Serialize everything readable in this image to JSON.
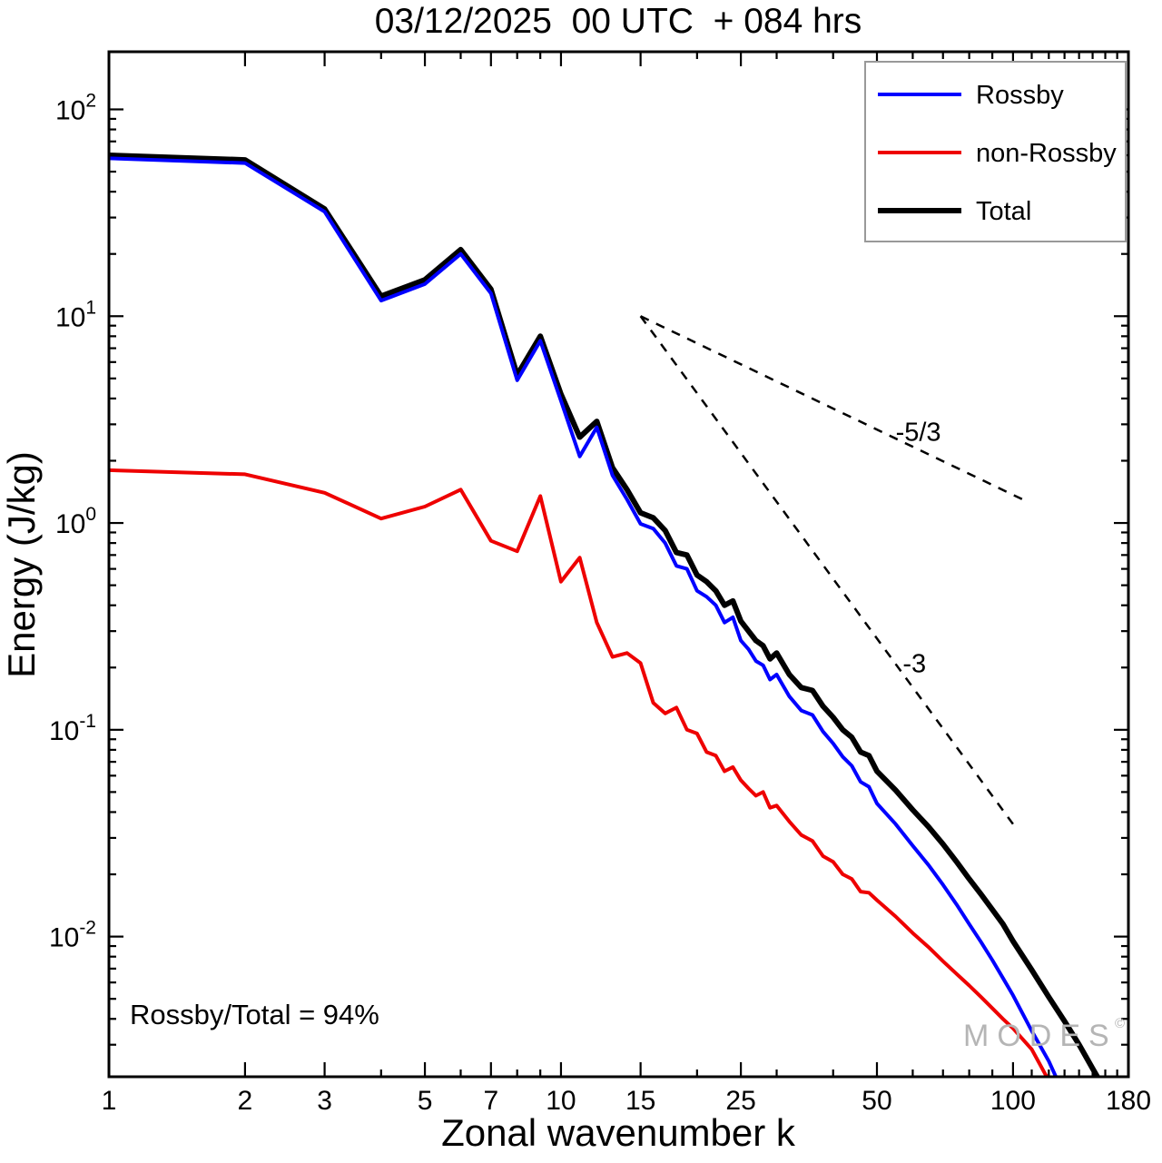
{
  "chart_data": {
    "type": "line",
    "title": "03/12/2025  00 UTC  + 084 hrs",
    "xlabel": "Zonal wavenumber k",
    "ylabel": "Energy (J/kg)",
    "xscale": "log",
    "yscale": "log",
    "xlim": [
      1,
      180
    ],
    "ylim": [
      0.0021,
      190
    ],
    "x_major_ticks": [
      1,
      2,
      3,
      5,
      7,
      10,
      15,
      25,
      50,
      100,
      180
    ],
    "y_major_exponents": [
      2,
      1,
      0,
      -1,
      -2
    ],
    "grid": false,
    "legend_position": "top-right",
    "series": [
      {
        "name": "Rossby",
        "color": "#0000ff",
        "width": 4,
        "x": [
          1,
          2,
          3,
          4,
          5,
          6,
          7,
          8,
          9,
          10,
          11,
          12,
          13,
          14,
          15,
          16,
          17,
          18,
          19,
          20,
          21,
          22,
          23,
          24,
          25,
          26,
          27,
          28,
          29,
          30,
          32,
          34,
          36,
          38,
          40,
          42,
          44,
          46,
          48,
          50,
          55,
          60,
          65,
          70,
          75,
          80,
          85,
          90,
          95,
          100,
          110,
          120,
          130
        ],
        "y": [
          58,
          55,
          32,
          11.9,
          14.3,
          20,
          12.9,
          4.9,
          7.6,
          3.9,
          2.1,
          2.9,
          1.7,
          1.3,
          0.99,
          0.94,
          0.8,
          0.62,
          0.6,
          0.47,
          0.44,
          0.4,
          0.33,
          0.35,
          0.27,
          0.245,
          0.215,
          0.205,
          0.175,
          0.185,
          0.145,
          0.124,
          0.118,
          0.098,
          0.086,
          0.074,
          0.067,
          0.056,
          0.053,
          0.044,
          0.035,
          0.0275,
          0.0222,
          0.0178,
          0.0143,
          0.0115,
          0.0094,
          0.0077,
          0.0063,
          0.0052,
          0.0035,
          0.0025,
          0.0017
        ]
      },
      {
        "name": "non-Rossby",
        "color": "#ee0000",
        "width": 4,
        "x": [
          1,
          2,
          3,
          4,
          5,
          6,
          7,
          8,
          9,
          10,
          11,
          12,
          13,
          14,
          15,
          16,
          17,
          18,
          19,
          20,
          21,
          22,
          23,
          24,
          25,
          26,
          27,
          28,
          29,
          30,
          32,
          34,
          36,
          38,
          40,
          42,
          44,
          46,
          48,
          50,
          55,
          60,
          65,
          70,
          75,
          80,
          85,
          90,
          95,
          100,
          110,
          118,
          126
        ],
        "y": [
          1.8,
          1.72,
          1.4,
          1.05,
          1.2,
          1.45,
          0.82,
          0.73,
          1.35,
          0.52,
          0.68,
          0.33,
          0.225,
          0.235,
          0.21,
          0.135,
          0.12,
          0.128,
          0.1,
          0.096,
          0.078,
          0.075,
          0.063,
          0.066,
          0.057,
          0.052,
          0.048,
          0.05,
          0.042,
          0.043,
          0.036,
          0.031,
          0.029,
          0.0245,
          0.023,
          0.02,
          0.019,
          0.0165,
          0.0163,
          0.015,
          0.0125,
          0.0104,
          0.0089,
          0.0076,
          0.0066,
          0.0058,
          0.0051,
          0.0045,
          0.004,
          0.0036,
          0.00285,
          0.00215,
          0.0018
        ]
      },
      {
        "name": "Total",
        "color": "#000000",
        "width": 6,
        "x": [
          1,
          2,
          3,
          4,
          5,
          6,
          7,
          8,
          9,
          10,
          11,
          12,
          13,
          14,
          15,
          16,
          17,
          18,
          19,
          20,
          21,
          22,
          23,
          24,
          25,
          26,
          27,
          28,
          29,
          30,
          32,
          34,
          36,
          38,
          40,
          42,
          44,
          46,
          48,
          50,
          55,
          60,
          65,
          70,
          75,
          80,
          85,
          90,
          95,
          100,
          110,
          120,
          130,
          140,
          150,
          160,
          170
        ],
        "y": [
          60,
          57,
          33,
          12.5,
          15,
          21,
          13.5,
          5.2,
          8.0,
          4.2,
          2.6,
          3.1,
          1.85,
          1.45,
          1.12,
          1.06,
          0.92,
          0.72,
          0.7,
          0.56,
          0.52,
          0.47,
          0.4,
          0.42,
          0.335,
          0.3,
          0.27,
          0.255,
          0.22,
          0.235,
          0.185,
          0.16,
          0.155,
          0.13,
          0.115,
          0.1,
          0.092,
          0.078,
          0.075,
          0.063,
          0.051,
          0.041,
          0.034,
          0.028,
          0.023,
          0.019,
          0.016,
          0.0135,
          0.0115,
          0.0095,
          0.0069,
          0.0051,
          0.0039,
          0.003,
          0.0023,
          0.0018,
          0.0014
        ]
      }
    ],
    "reference_lines": [
      {
        "label": "-5/3",
        "from": [
          15,
          10
        ],
        "to": [
          105,
          1.3
        ],
        "label_pos": [
          55,
          2.5
        ]
      },
      {
        "label": "-3",
        "from": [
          15,
          10
        ],
        "to": [
          100,
          0.035
        ],
        "label_pos": [
          57,
          0.19
        ]
      }
    ],
    "annotation": "Rossby/Total = 94%",
    "watermark": "MODES",
    "watermark_mark": "©",
    "colors": {
      "rossby": "#0000ff",
      "non_rossby": "#ee0000",
      "total": "#000000",
      "frame": "#000000",
      "legend_border": "#999999",
      "watermark": "#b5b5b5"
    }
  }
}
